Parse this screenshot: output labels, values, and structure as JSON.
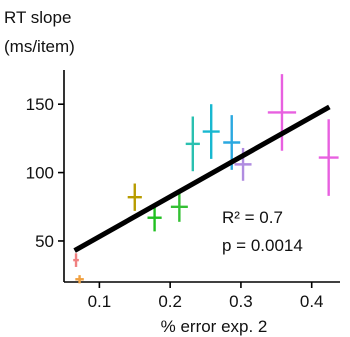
{
  "chart_data": {
    "type": "scatter",
    "title": "",
    "ylabel": "RT slope",
    "ylabel_unit": "(ms/item)",
    "xlabel": "% error exp. 2",
    "xlim": [
      0.05,
      0.44
    ],
    "ylim": [
      20,
      175
    ],
    "xticks": [
      0.1,
      0.2,
      0.3,
      0.4
    ],
    "xtick_labels": [
      "0.1",
      "0.2",
      "0.3",
      "0.4"
    ],
    "yticks": [
      50,
      100,
      150
    ],
    "ytick_labels": [
      "50",
      "100",
      "150"
    ],
    "grid": false,
    "legend": "none",
    "points": [
      {
        "x": 0.067,
        "y": 36,
        "xerr": 0.004,
        "yerr": 5,
        "color": "#f08080"
      },
      {
        "x": 0.072,
        "y": 22,
        "xerr": 0.006,
        "yerr": 3,
        "color": "#f0a040"
      },
      {
        "x": 0.15,
        "y": 82,
        "xerr": 0.01,
        "yerr": 10,
        "color": "#b89c00"
      },
      {
        "x": 0.178,
        "y": 67,
        "xerr": 0.01,
        "yerr": 10,
        "color": "#20c020"
      },
      {
        "x": 0.213,
        "y": 75,
        "xerr": 0.012,
        "yerr": 11,
        "color": "#34c034"
      },
      {
        "x": 0.232,
        "y": 121,
        "xerr": 0.01,
        "yerr": 20,
        "color": "#2ac0b0"
      },
      {
        "x": 0.258,
        "y": 130,
        "xerr": 0.012,
        "yerr": 20,
        "color": "#18b8d0"
      },
      {
        "x": 0.287,
        "y": 122,
        "xerr": 0.012,
        "yerr": 20,
        "color": "#2aa8e0"
      },
      {
        "x": 0.303,
        "y": 106,
        "xerr": 0.012,
        "yerr": 12,
        "color": "#b08ce0"
      },
      {
        "x": 0.358,
        "y": 144,
        "xerr": 0.02,
        "yerr": 28,
        "color": "#e860e0"
      },
      {
        "x": 0.424,
        "y": 111,
        "xerr": 0.014,
        "yerr": 28,
        "color": "#e860e0"
      }
    ],
    "fit_line": {
      "x": [
        0.065,
        0.425
      ],
      "y": [
        43,
        148
      ],
      "color": "#000000"
    },
    "annotations": {
      "r2": "R² = 0.7",
      "p": "p = 0.0014"
    }
  }
}
